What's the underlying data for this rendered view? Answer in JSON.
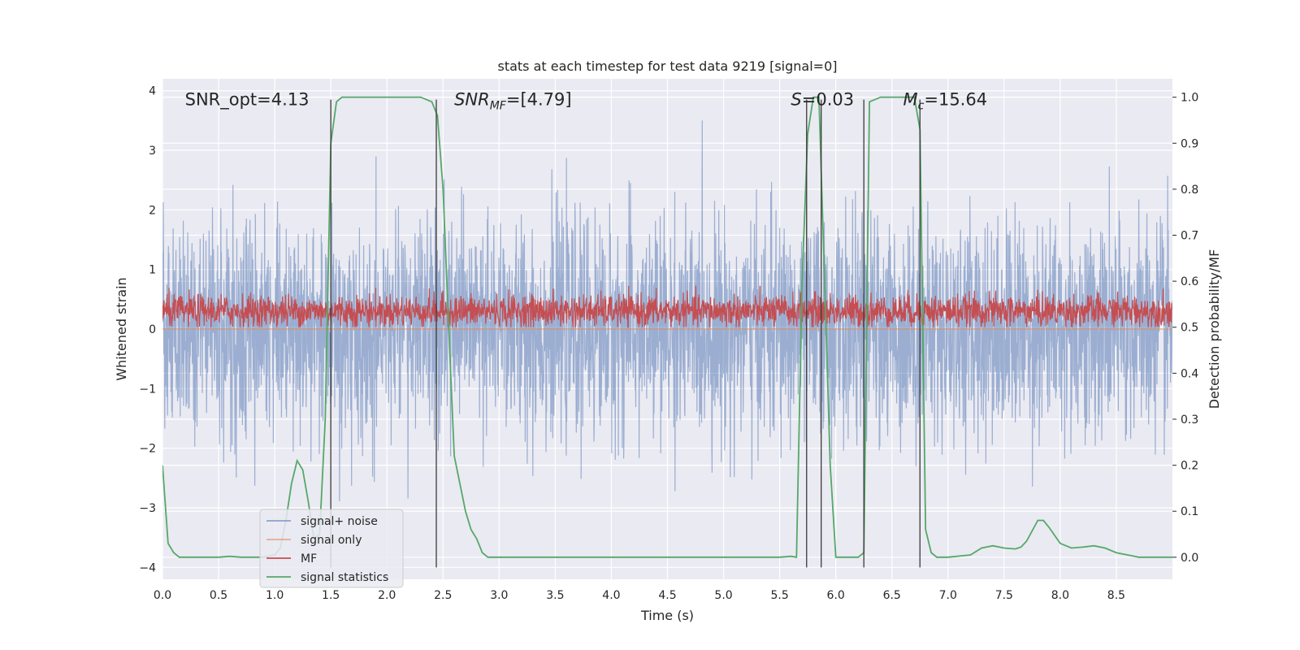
{
  "chart_data": {
    "type": "line",
    "title": "stats at each timestep for test data 9219 [signal=0]",
    "xlabel": "Time (s)",
    "ylabel": "Whitened strain",
    "ylabel_right": "Detection probability/MF",
    "xlim": [
      0,
      9
    ],
    "ylim": [
      -4.2,
      4.2
    ],
    "ylim_right": [
      -0.048,
      1.04
    ],
    "x_ticks": [
      "0.0",
      "0.5",
      "1.0",
      "1.5",
      "2.0",
      "2.5",
      "3.0",
      "3.5",
      "4.0",
      "4.5",
      "5.0",
      "5.5",
      "6.0",
      "6.5",
      "7.0",
      "7.5",
      "8.0",
      "8.5"
    ],
    "y_ticks": [
      "4",
      "3",
      "2",
      "1",
      "0",
      "−1",
      "−2",
      "−3",
      "−4"
    ],
    "y_ticks_right": [
      "1.0",
      "0.9",
      "0.8",
      "0.7",
      "0.6",
      "0.5",
      "0.4",
      "0.3",
      "0.2",
      "0.1",
      "0.0"
    ],
    "grid": true,
    "legend_position": "lower-left",
    "annotations": [
      {
        "text": "SNR_opt=4.13",
        "x": 0.2,
        "y": 3.85
      },
      {
        "text": "SNR",
        "sub": "MF",
        "suffix": "=[4.79]",
        "x": 2.6,
        "y": 3.85,
        "italic": true
      },
      {
        "text": "S",
        "suffix": "=0.03",
        "x": 5.6,
        "y": 3.85,
        "italic": true
      },
      {
        "text": "M",
        "sub": "c",
        "suffix": "=15.64",
        "x": 6.6,
        "y": 3.85,
        "italic": true
      }
    ],
    "vertical_markers": [
      1.5,
      2.44,
      5.74,
      5.87,
      6.25,
      6.75
    ],
    "series": [
      {
        "name": "signal+ noise",
        "color": "#4c72b0",
        "axis": "left",
        "style": "dense-noise",
        "sample_rate_hz": 400,
        "std": 0.9,
        "peak_range": [
          -3.9,
          3.5
        ]
      },
      {
        "name": "signal only",
        "color": "#dd8452",
        "axis": "left",
        "style": "flat",
        "value": 0
      },
      {
        "name": "MF",
        "color": "#c44e52",
        "axis": "right",
        "style": "dense-noise",
        "mean": 0.535,
        "std": 0.018,
        "value_range": [
          0.5,
          0.59
        ]
      },
      {
        "name": "signal statistics",
        "color": "#55a868",
        "axis": "right",
        "style": "line",
        "x": [
          0.0,
          0.05,
          0.1,
          0.15,
          0.2,
          0.3,
          0.5,
          0.6,
          0.7,
          0.8,
          0.9,
          1.0,
          1.05,
          1.1,
          1.15,
          1.2,
          1.25,
          1.3,
          1.35,
          1.4,
          1.45,
          1.5,
          1.55,
          1.6,
          1.7,
          2.0,
          2.3,
          2.4,
          2.45,
          2.5,
          2.55,
          2.6,
          2.65,
          2.7,
          2.75,
          2.8,
          2.85,
          2.9,
          3.0,
          4.0,
          5.0,
          5.5,
          5.6,
          5.65,
          5.7,
          5.75,
          5.8,
          5.85,
          5.9,
          5.95,
          6.0,
          6.1,
          6.2,
          6.25,
          6.3,
          6.4,
          6.6,
          6.7,
          6.75,
          6.8,
          6.85,
          6.9,
          7.0,
          7.2,
          7.3,
          7.4,
          7.5,
          7.6,
          7.65,
          7.7,
          7.8,
          7.85,
          7.9,
          8.0,
          8.1,
          8.2,
          8.3,
          8.4,
          8.5,
          8.6,
          8.7,
          9.0
        ],
        "y": [
          0.2,
          0.03,
          0.01,
          0.0,
          0.0,
          0.0,
          0.0,
          0.002,
          0.0,
          0.0,
          0.0,
          0.005,
          0.02,
          0.08,
          0.16,
          0.21,
          0.19,
          0.12,
          0.04,
          0.05,
          0.3,
          0.9,
          0.99,
          1.0,
          1.0,
          1.0,
          1.0,
          0.99,
          0.96,
          0.8,
          0.5,
          0.22,
          0.16,
          0.1,
          0.06,
          0.04,
          0.01,
          0.0,
          0.0,
          0.0,
          0.0,
          0.0,
          0.002,
          0.0,
          0.6,
          0.92,
          1.0,
          1.0,
          0.6,
          0.2,
          0.0,
          0.0,
          0.0,
          0.01,
          0.99,
          1.0,
          1.0,
          1.0,
          0.93,
          0.06,
          0.01,
          0.0,
          0.0,
          0.005,
          0.02,
          0.025,
          0.02,
          0.018,
          0.022,
          0.035,
          0.08,
          0.08,
          0.065,
          0.03,
          0.02,
          0.022,
          0.025,
          0.02,
          0.01,
          0.005,
          0.0,
          0.0
        ]
      }
    ]
  }
}
